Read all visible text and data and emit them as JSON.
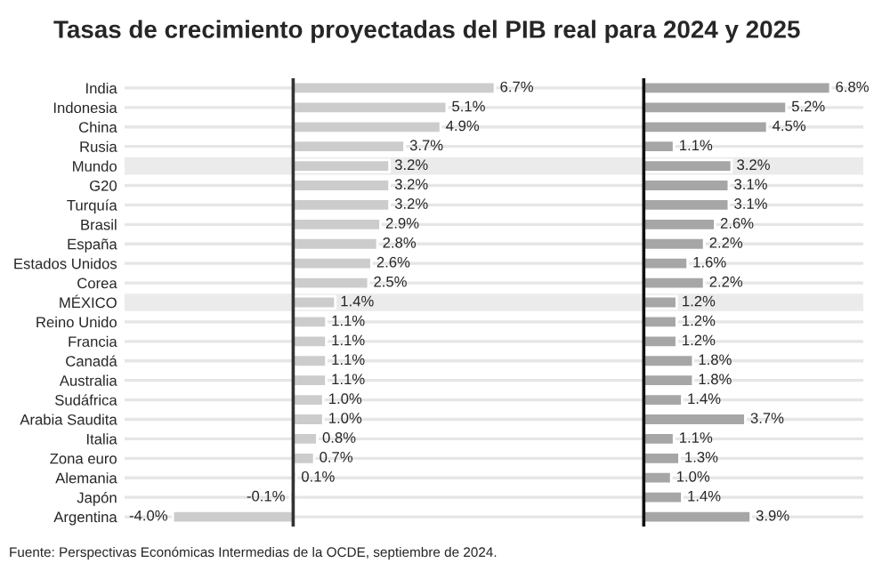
{
  "chart_data": [
    {
      "type": "bar",
      "orientation": "horizontal",
      "title": "Tasas de crecimiento proyectadas del PIB real para 2024 y 2025",
      "categories": [
        "India",
        "Indonesia",
        "China",
        "Rusia",
        "Mundo",
        "G20",
        "Turquía",
        "Brasil",
        "España",
        "Estados Unidos",
        "Corea",
        "MÉXICO",
        "Reino Unido",
        "Francia",
        "Canadá",
        "Australia",
        "Sudáfrica",
        "Arabia Saudita",
        "Italia",
        "Zona euro",
        "Alemania",
        "Japón",
        "Argentina"
      ],
      "values": [
        6.7,
        5.1,
        4.9,
        3.7,
        3.2,
        3.2,
        3.2,
        2.9,
        2.8,
        2.6,
        2.5,
        1.4,
        1.1,
        1.1,
        1.1,
        1.1,
        1.0,
        1.0,
        0.8,
        0.7,
        0.1,
        -0.1,
        -4.0
      ],
      "value_labels": [
        "6.7%",
        "5.1%",
        "4.9%",
        "3.7%",
        "3.2%",
        "3.2%",
        "3.2%",
        "2.9%",
        "2.8%",
        "2.6%",
        "2.5%",
        "1.4%",
        "1.1%",
        "1.1%",
        "1.1%",
        "1.1%",
        "1.0%",
        "1.0%",
        "0.8%",
        "0.7%",
        "0.1%",
        "-0.1%",
        "-4.0%"
      ],
      "color": "#cccccc",
      "xlim": [
        -5.6,
        8.0
      ],
      "grid": "y",
      "tick_labels": "y",
      "ref_lines": [
        {
          "axis": "x",
          "value": 0,
          "color": "#333333"
        }
      ],
      "bands": [
        {
          "axis": "y",
          "from": "Mundo",
          "to": "Mundo",
          "color": "#ebebeb"
        },
        {
          "axis": "y",
          "from": "MÉXICO",
          "to": "MÉXICO",
          "color": "#ebebeb"
        }
      ],
      "annotations": [
        "Fuente: Perspectivas Económicas Intermedias de la OCDE, septiembre de 2024."
      ]
    },
    {
      "type": "bar",
      "orientation": "horizontal",
      "categories": [
        "India",
        "Indonesia",
        "China",
        "Rusia",
        "Mundo",
        "G20",
        "Turquía",
        "Brasil",
        "España",
        "Estados Unidos",
        "Corea",
        "MÉXICO",
        "Reino Unido",
        "Francia",
        "Canadá",
        "Australia",
        "Sudáfrica",
        "Arabia Saudita",
        "Italia",
        "Zona euro",
        "Alemania",
        "Japón",
        "Argentina"
      ],
      "values": [
        6.8,
        5.2,
        4.5,
        1.1,
        3.2,
        3.1,
        3.1,
        2.6,
        2.2,
        1.6,
        2.2,
        1.2,
        1.2,
        1.2,
        1.8,
        1.8,
        1.4,
        3.7,
        1.1,
        1.3,
        1.0,
        1.4,
        3.9
      ],
      "value_labels": [
        "6.8%",
        "5.2%",
        "4.5%",
        "1.1%",
        "3.2%",
        "3.1%",
        "3.1%",
        "2.6%",
        "2.2%",
        "1.6%",
        "2.2%",
        "1.2%",
        "1.2%",
        "1.2%",
        "1.8%",
        "1.8%",
        "1.4%",
        "3.7%",
        "1.1%",
        "1.3%",
        "1.0%",
        "1.4%",
        "3.9%"
      ],
      "color": "#a6a6a6",
      "xlim": [
        -4.0,
        8.0
      ],
      "grid": "y",
      "tick_labels": false,
      "ref_lines": [
        {
          "axis": "x",
          "value": 0,
          "color": "#111111"
        }
      ],
      "bands": [
        {
          "axis": "y",
          "from": "Mundo",
          "to": "Mundo",
          "color": "#ebebeb"
        },
        {
          "axis": "y",
          "from": "MÉXICO",
          "to": "MÉXICO",
          "color": "#ebebeb"
        }
      ]
    }
  ]
}
